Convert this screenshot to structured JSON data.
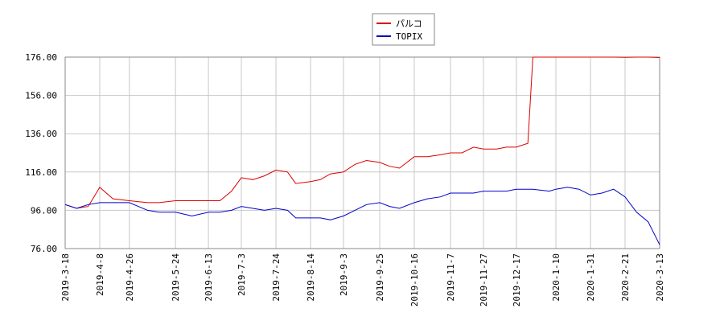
{
  "chart_data": {
    "type": "line",
    "x": [
      "2019-3-18",
      "2019-3-25",
      "2019-4-1",
      "2019-4-8",
      "2019-4-16",
      "2019-4-26",
      "2019-5-7",
      "2019-5-14",
      "2019-5-24",
      "2019-6-3",
      "2019-6-13",
      "2019-6-20",
      "2019-6-27",
      "2019-7-3",
      "2019-7-10",
      "2019-7-17",
      "2019-7-24",
      "2019-7-31",
      "2019-8-5",
      "2019-8-14",
      "2019-8-20",
      "2019-8-26",
      "2019-9-3",
      "2019-9-10",
      "2019-9-17",
      "2019-9-25",
      "2019-10-1",
      "2019-10-7",
      "2019-10-16",
      "2019-10-24",
      "2019-11-1",
      "2019-11-7",
      "2019-11-14",
      "2019-11-21",
      "2019-11-27",
      "2019-12-5",
      "2019-12-11",
      "2019-12-17",
      "2019-12-24",
      "2019-12-27",
      "2020-1-6",
      "2020-1-10",
      "2020-1-17",
      "2020-1-24",
      "2020-1-31",
      "2020-2-7",
      "2020-2-14",
      "2020-2-21",
      "2020-2-28",
      "2020-3-6",
      "2020-3-13"
    ],
    "series": [
      {
        "name": "パルコ",
        "color": "#dd0000",
        "values": [
          99,
          97,
          98,
          108,
          102,
          101,
          100,
          100,
          101,
          101,
          101,
          101,
          106,
          113,
          112,
          114,
          117,
          116,
          110,
          111,
          112,
          115,
          116,
          120,
          122,
          121,
          119,
          118,
          124,
          124,
          125,
          126,
          126,
          129,
          128,
          128,
          129,
          129,
          131,
          176,
          176,
          176,
          176,
          176,
          176,
          176,
          176,
          175.9,
          176,
          176,
          175.8
        ]
      },
      {
        "name": "TOPIX",
        "color": "#0000cc",
        "values": [
          99,
          97,
          99,
          100,
          100,
          100,
          96,
          95,
          95,
          93,
          95,
          95,
          96,
          98,
          97,
          96,
          97,
          96,
          92,
          92,
          92,
          91,
          93,
          96,
          99,
          100,
          98,
          97,
          100,
          102,
          103,
          105,
          105,
          105,
          106,
          106,
          106,
          107,
          107,
          107,
          106,
          107,
          108,
          107,
          104,
          105,
          107,
          103,
          95,
          90,
          78
        ]
      }
    ],
    "xlim": [
      "2019-3-18",
      "2020-3-13"
    ],
    "xticks": [
      "2019-3-18",
      "2019-4-8",
      "2019-4-26",
      "2019-5-24",
      "2019-6-13",
      "2019-7-3",
      "2019-7-24",
      "2019-8-14",
      "2019-9-3",
      "2019-9-25",
      "2019-10-16",
      "2019-11-7",
      "2019-11-27",
      "2019-12-17",
      "2020-1-10",
      "2020-1-31",
      "2020-2-21",
      "2020-3-13"
    ],
    "ylim": [
      76,
      176
    ],
    "yticks": [
      {
        "value": 76,
        "label": "76.00"
      },
      {
        "value": 96,
        "label": "96.00"
      },
      {
        "value": 116,
        "label": "116.00"
      },
      {
        "value": 136,
        "label": "136.00"
      },
      {
        "value": 156,
        "label": "156.00"
      },
      {
        "value": 176,
        "label": "176.00"
      }
    ],
    "grid": true
  }
}
